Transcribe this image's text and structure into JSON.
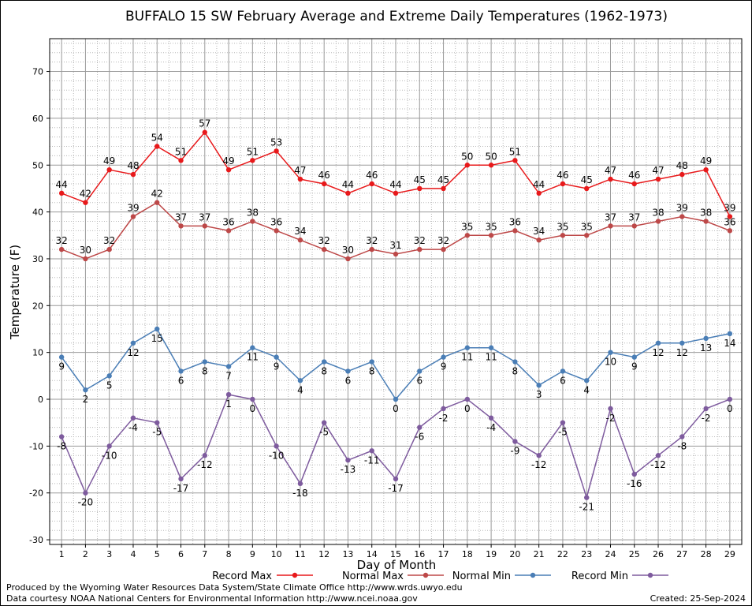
{
  "chart_data": {
    "type": "line",
    "title": "BUFFALO 15 SW February Average and Extreme Daily Temperatures (1962-1973)",
    "xlabel": "Day of Month",
    "ylabel": "Temperature (F)",
    "x": [
      1,
      2,
      3,
      4,
      5,
      6,
      7,
      8,
      9,
      10,
      11,
      12,
      13,
      14,
      15,
      16,
      17,
      18,
      19,
      20,
      21,
      22,
      23,
      24,
      25,
      26,
      27,
      28,
      29
    ],
    "xlim": [
      0.5,
      29.5
    ],
    "ylim": [
      -31,
      77
    ],
    "yticks": [
      -30,
      -20,
      -10,
      0,
      10,
      20,
      30,
      40,
      50,
      60,
      70
    ],
    "grid": true,
    "legend_position": "bottom",
    "series": [
      {
        "name": "Record Max",
        "color": "#e8191b",
        "values": [
          44,
          42,
          49,
          48,
          54,
          51,
          57,
          49,
          51,
          53,
          47,
          46,
          44,
          46,
          44,
          45,
          45,
          50,
          50,
          51,
          44,
          46,
          45,
          47,
          46,
          47,
          48,
          49,
          39
        ]
      },
      {
        "name": "Normal Max",
        "color": "#bd4848",
        "values": [
          32,
          30,
          32,
          39,
          42,
          37,
          37,
          36,
          38,
          36,
          34,
          32,
          30,
          32,
          31,
          32,
          32,
          35,
          35,
          36,
          34,
          35,
          35,
          37,
          37,
          38,
          39,
          38,
          36
        ]
      },
      {
        "name": "Normal Min",
        "color": "#4a7eb6",
        "values": [
          9,
          2,
          5,
          12,
          15,
          6,
          8,
          7,
          11,
          9,
          4,
          8,
          6,
          8,
          0,
          6,
          9,
          11,
          11,
          8,
          3,
          6,
          4,
          10,
          9,
          12,
          12,
          13,
          14
        ]
      },
      {
        "name": "Record Min",
        "color": "#7e5b9e",
        "values": [
          -8,
          -20,
          -10,
          -4,
          -5,
          -17,
          -12,
          1,
          0,
          -10,
          -18,
          -5,
          -13,
          -11,
          -17,
          -6,
          -2,
          0,
          -4,
          -9,
          -12,
          -5,
          -21,
          -2,
          -16,
          -12,
          -8,
          -2,
          0
        ]
      }
    ]
  },
  "footer": {
    "producer": "Produced by the Wyoming Water Resources Data System/State Climate Office http://www.wrds.uwyo.edu",
    "source": "Data courtesy NOAA National Centers for Environmental Information http://www.ncei.noaa.gov",
    "created": "Created:  25-Sep-2024"
  }
}
